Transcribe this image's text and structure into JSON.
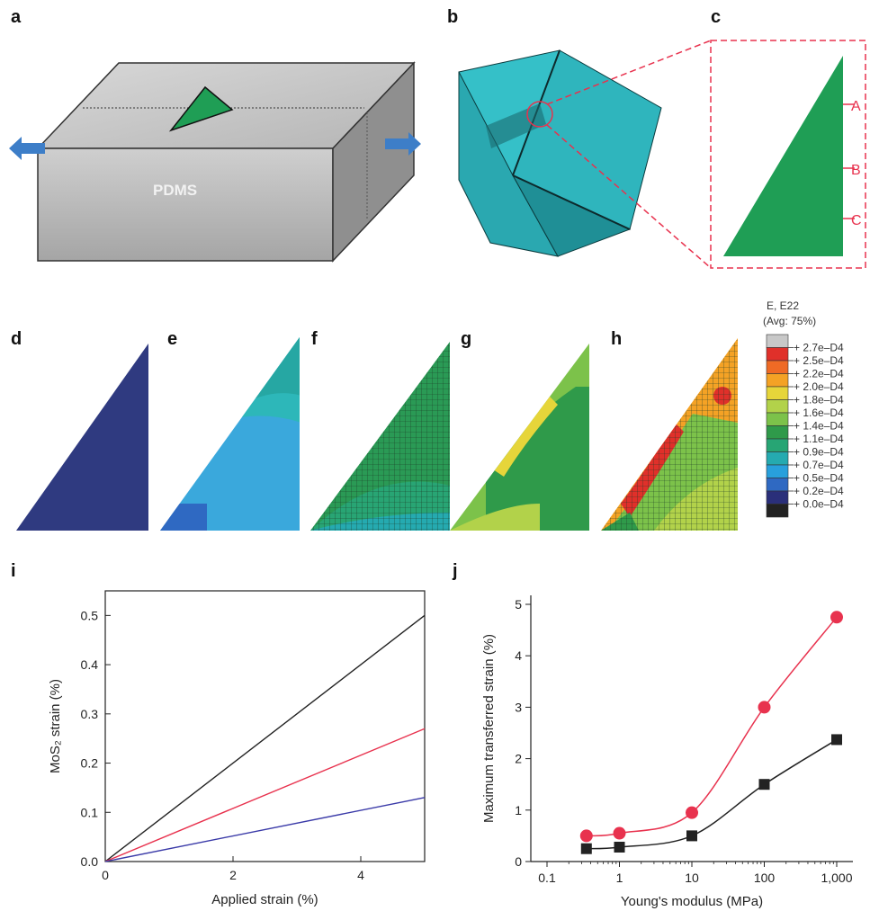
{
  "panels": [
    "a",
    "b",
    "c",
    "d",
    "e",
    "f",
    "g",
    "h",
    "i",
    "j"
  ],
  "labels_a": {
    "substrate": "PDMS"
  },
  "labels_c": [
    "A",
    "B",
    "C"
  ],
  "legend": {
    "title": "E, E22",
    "subtitle": "(Avg: 75%)",
    "entries": [
      "+ 2.7e–D4",
      "+ 2.5e–D4",
      "+ 2.2e–D4",
      "+ 2.0e–D4",
      "+ 1.8e–D4",
      "+ 1.6e–D4",
      "+ 1.4e–D4",
      "+ 1.1e–D4",
      "+ 0.9e–D4",
      "+ 0.7e–D4",
      "+ 0.5e–D4",
      "+ 0.2e–D4",
      "+ 0.0e–D4"
    ],
    "colors": [
      "#c8c8c8",
      "#e0302a",
      "#ef6a25",
      "#f4a225",
      "#e6d53a",
      "#b2d24a",
      "#7cc24a",
      "#2f9a4a",
      "#27a574",
      "#25aab0",
      "#28a0dc",
      "#2f69c2",
      "#2a2f7a",
      "#222222"
    ]
  },
  "chart_data": [
    {
      "type": "line",
      "xlabel": "Applied strain (%)",
      "ylabel": "MoS₂ strain (%)",
      "xlim": [
        0,
        5
      ],
      "ylim": [
        0,
        0.55
      ],
      "xticks": [
        "0",
        "2",
        "4"
      ],
      "yticks": [
        "0.0",
        "0.1",
        "0.2",
        "0.3",
        "0.4",
        "0.5"
      ],
      "series": [
        {
          "color": "#222222",
          "x": [
            0,
            5
          ],
          "y": [
            0,
            0.5
          ]
        },
        {
          "color": "#e8324e",
          "x": [
            0,
            5
          ],
          "y": [
            0,
            0.27
          ]
        },
        {
          "color": "#3a3aa8",
          "x": [
            0,
            5
          ],
          "y": [
            0,
            0.13
          ]
        }
      ]
    },
    {
      "type": "scatter",
      "xlabel": "Young's modulus (MPa)",
      "ylabel": "Maximum transferred strain (%)",
      "xscale": "log",
      "xlim": [
        0.1,
        1000
      ],
      "ylim": [
        0,
        5
      ],
      "xticks": [
        "0.1",
        "1",
        "10",
        "100",
        "1,000"
      ],
      "yticks": [
        "0",
        "1",
        "2",
        "3",
        "4",
        "5"
      ],
      "series": [
        {
          "marker": "circle",
          "color": "#e8324e",
          "x": [
            0.35,
            1,
            10,
            100,
            1000
          ],
          "y": [
            0.5,
            0.55,
            0.95,
            3.0,
            4.75
          ]
        },
        {
          "marker": "square",
          "color": "#222222",
          "x": [
            0.35,
            1,
            10,
            100,
            1000
          ],
          "y": [
            0.25,
            0.28,
            0.5,
            1.5,
            2.37
          ]
        }
      ]
    }
  ]
}
